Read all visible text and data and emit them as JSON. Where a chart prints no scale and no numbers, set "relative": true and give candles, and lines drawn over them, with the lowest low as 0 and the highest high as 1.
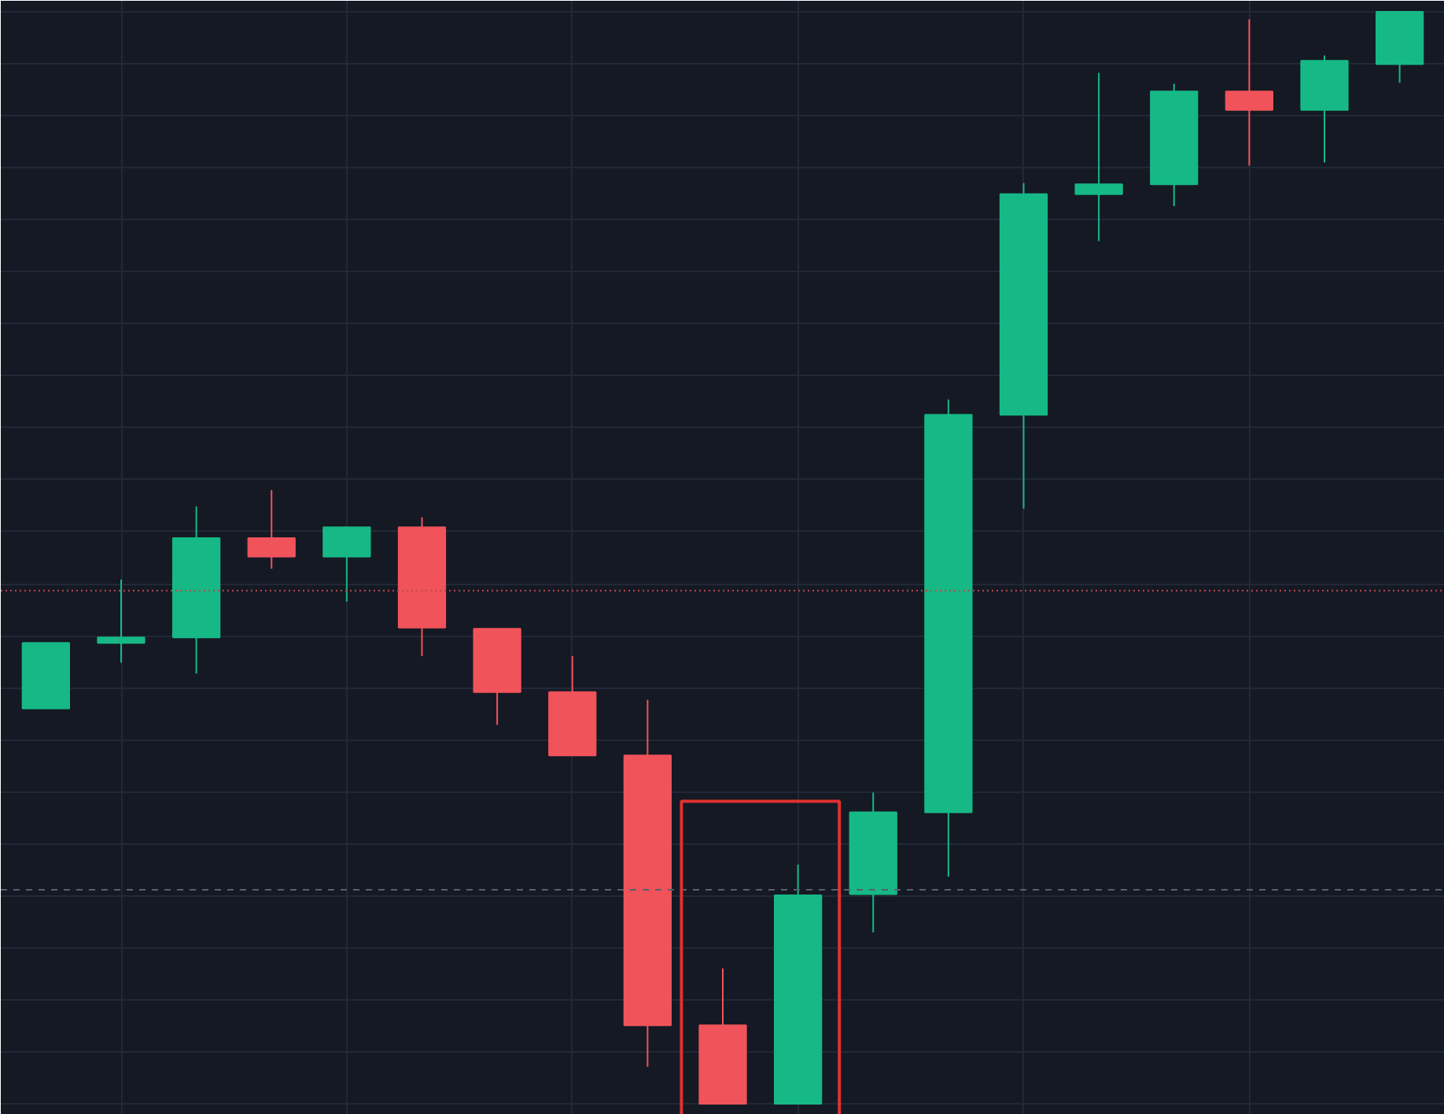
{
  "chart_data": {
    "type": "candlestick",
    "relative": true,
    "grid": true,
    "categories": [
      null,
      null,
      null,
      null,
      null,
      null,
      null,
      null,
      null,
      null,
      null,
      null,
      null,
      null,
      null,
      null,
      null,
      null,
      null
    ],
    "ohlc": [
      [
        0.362,
        0.422,
        0.362,
        0.422
      ],
      [
        0.422,
        0.48,
        0.404,
        0.427
      ],
      [
        0.427,
        0.547,
        0.394,
        0.518
      ],
      [
        0.518,
        0.562,
        0.49,
        0.501
      ],
      [
        0.501,
        0.528,
        0.46,
        0.528
      ],
      [
        0.528,
        0.537,
        0.41,
        0.436
      ],
      [
        0.435,
        0.435,
        0.347,
        0.377
      ],
      [
        0.377,
        0.41,
        0.319,
        0.319
      ],
      [
        0.319,
        0.37,
        0.034,
        0.072
      ],
      [
        0.072,
        0.124,
        0.0,
        0.0
      ],
      [
        0.0,
        0.219,
        0.0,
        0.191
      ],
      [
        0.192,
        0.285,
        0.157,
        0.267
      ],
      [
        0.267,
        0.645,
        0.208,
        0.631
      ],
      [
        0.631,
        0.843,
        0.545,
        0.833
      ],
      [
        0.833,
        0.944,
        0.79,
        0.842
      ],
      [
        0.842,
        0.934,
        0.822,
        0.927
      ],
      [
        0.927,
        0.993,
        0.859,
        0.91
      ],
      [
        0.91,
        0.96,
        0.862,
        0.955
      ],
      [
        0.952,
        1.0,
        0.935,
        1.0
      ]
    ],
    "ref_lines": [
      {
        "axis": "y",
        "value": 0.47,
        "color": "#c0474b",
        "line_style": "dotted"
      },
      {
        "axis": "y",
        "value": 0.196,
        "color": "#5a5f6e",
        "line_style": "dashed"
      }
    ]
  }
}
